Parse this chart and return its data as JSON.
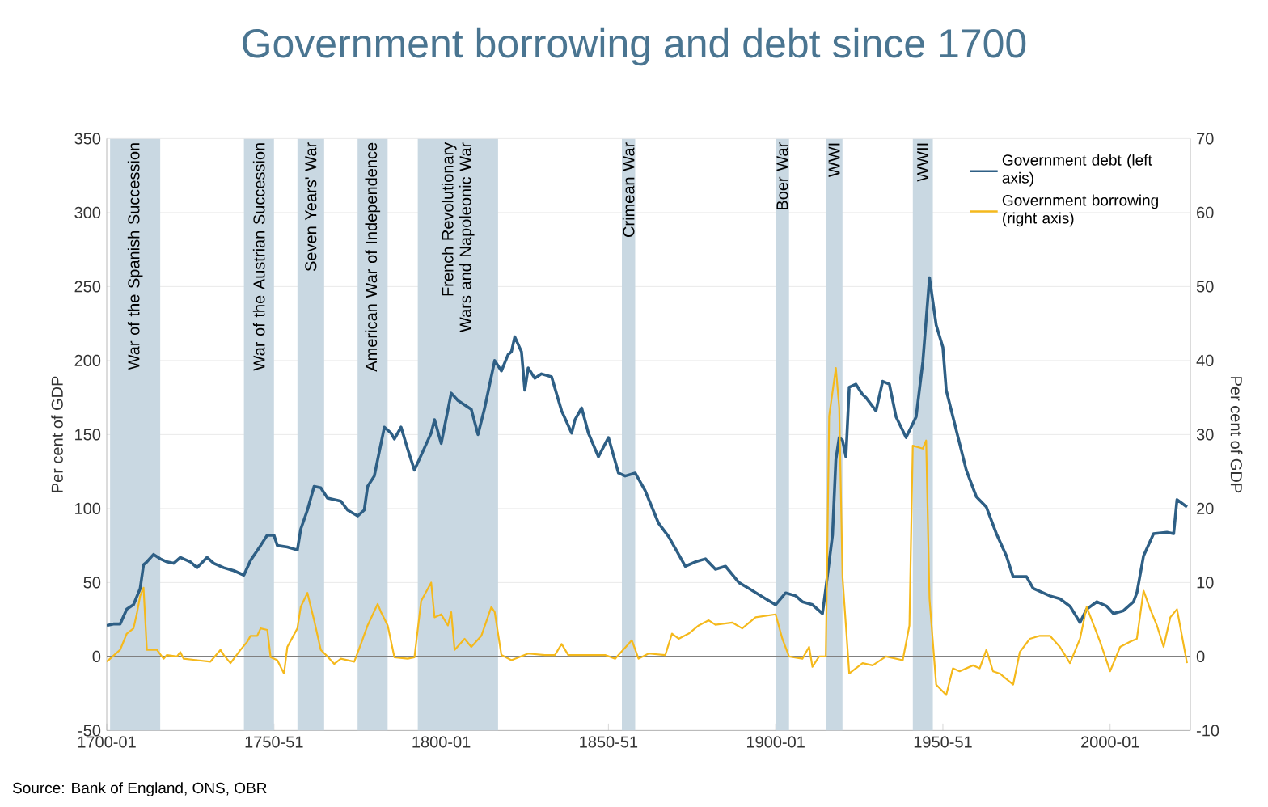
{
  "chart_data": {
    "type": "line",
    "title": "Government borrowing and debt since 1700",
    "ylabel": "Per cent of GDP",
    "y2label": "Per cent of GDP",
    "annotations": [
      "Source: Bank of England, ONS, OBR"
    ],
    "xlim": [
      "1700",
      "2024"
    ],
    "xticks": [
      {
        "value": "1700",
        "label": "1700-01"
      },
      {
        "value": "1750",
        "label": "1750-51"
      },
      {
        "value": "1800",
        "label": "1800-01"
      },
      {
        "value": "1850",
        "label": "1850-51"
      },
      {
        "value": "1900",
        "label": "1900-01"
      },
      {
        "value": "1950",
        "label": "1950-51"
      },
      {
        "value": "2000",
        "label": "2000-01"
      }
    ],
    "ylim": [
      -50,
      350
    ],
    "yticks": [
      -50,
      0,
      50,
      100,
      150,
      200,
      250,
      300,
      350
    ],
    "y2lim": [
      -10,
      70
    ],
    "y2ticks": [
      -10,
      0,
      10,
      20,
      30,
      40,
      50,
      60,
      70
    ],
    "grid": "y",
    "legend": "top right",
    "marker": "none",
    "line_style": "solid",
    "ref_lines": [
      {
        "axis": "y",
        "value": 0,
        "color": "#808080"
      }
    ],
    "bands": [
      {
        "axis": "x",
        "from": "1701",
        "to": "1716",
        "label": "War of the Spanish Succession",
        "color": "#c9d8e2"
      },
      {
        "axis": "x",
        "from": "1741",
        "to": "1750",
        "label": "War of the Austrian Succession",
        "color": "#c9d8e2"
      },
      {
        "axis": "x",
        "from": "1757",
        "to": "1765",
        "label": "Seven Years' War",
        "color": "#c9d8e2"
      },
      {
        "axis": "x",
        "from": "1775",
        "to": "1784",
        "label": "American War of Independence",
        "color": "#c9d8e2"
      },
      {
        "axis": "x",
        "from": "1793",
        "to": "1817",
        "label": "French Revolutionary Wars and Napoleonic War",
        "color": "#c9d8e2"
      },
      {
        "axis": "x",
        "from": "1854",
        "to": "1858",
        "label": "Crimean War",
        "color": "#c9d8e2"
      },
      {
        "axis": "x",
        "from": "1900",
        "to": "1904",
        "label": "Boer War",
        "color": "#c9d8e2"
      },
      {
        "axis": "x",
        "from": "1915",
        "to": "1920",
        "label": "WWI",
        "color": "#c9d8e2"
      },
      {
        "axis": "x",
        "from": "1941",
        "to": "1947",
        "label": "WWII",
        "color": "#c9d8e2"
      }
    ],
    "series": [
      {
        "name": "Government debt (left axis)",
        "color": "#2e5f85",
        "axis": "y",
        "x": [
          "1700",
          "1702",
          "1704",
          "1706",
          "1708",
          "1710",
          "1711",
          "1712",
          "1714",
          "1716",
          "1718",
          "1720",
          "1722",
          "1725",
          "1727",
          "1730",
          "1732",
          "1735",
          "1738",
          "1741",
          "1743",
          "1746",
          "1748",
          "1750",
          "1751",
          "1754",
          "1757",
          "1758",
          "1760",
          "1762",
          "1764",
          "1766",
          "1770",
          "1772",
          "1775",
          "1777",
          "1778",
          "1780",
          "1782",
          "1783",
          "1785",
          "1786",
          "1788",
          "1790",
          "1792",
          "1795",
          "1797",
          "1798",
          "1800",
          "1803",
          "1805",
          "1807",
          "1809",
          "1811",
          "1813",
          "1816",
          "1818",
          "1820",
          "1821",
          "1822",
          "1824",
          "1825",
          "1826",
          "1828",
          "1830",
          "1833",
          "1836",
          "1839",
          "1840",
          "1842",
          "1844",
          "1847",
          "1850",
          "1853",
          "1855",
          "1858",
          "1861",
          "1865",
          "1868",
          "1873",
          "1876",
          "1879",
          "1882",
          "1885",
          "1889",
          "1892",
          "1897",
          "1900",
          "1903",
          "1906",
          "1908",
          "1911",
          "1914",
          "1915",
          "1917",
          "1918",
          "1919",
          "1920",
          "1921",
          "1922",
          "1924",
          "1926",
          "1927",
          "1930",
          "1932",
          "1934",
          "1936",
          "1939",
          "1942",
          "1944",
          "1946",
          "1948",
          "1950",
          "1951",
          "1955",
          "1957",
          "1960",
          "1963",
          "1966",
          "1969",
          "1971",
          "1975",
          "1977",
          "1982",
          "1985",
          "1988",
          "1991",
          "1993",
          "1996",
          "1999",
          "2001",
          "2004",
          "2007",
          "2008",
          "2010",
          "2013",
          "2017",
          "2019",
          "2020",
          "2023"
        ],
        "values": [
          21,
          22,
          22,
          32,
          35,
          46,
          62,
          64,
          69,
          66,
          64,
          63,
          67,
          64,
          60,
          67,
          63,
          60,
          58,
          55,
          65,
          75,
          82,
          82,
          75,
          74,
          72,
          86,
          99,
          115,
          114,
          107,
          105,
          99,
          95,
          99,
          115,
          122,
          144,
          155,
          151,
          147,
          155,
          140,
          126,
          141,
          151,
          160,
          144,
          178,
          173,
          170,
          167,
          150,
          168,
          200,
          193,
          204,
          206,
          216,
          206,
          180,
          195,
          188,
          191,
          189,
          166,
          151,
          160,
          168,
          151,
          135,
          148,
          124,
          122,
          124,
          112,
          90,
          81,
          61,
          64,
          66,
          59,
          61,
          50,
          46,
          39,
          35,
          43,
          41,
          37,
          35,
          29,
          46,
          82,
          133,
          148,
          146,
          135,
          182,
          184,
          177,
          175,
          166,
          186,
          184,
          162,
          148,
          162,
          199,
          256,
          224,
          209,
          180,
          144,
          126,
          108,
          101,
          83,
          68,
          54,
          54,
          46,
          41,
          39,
          34,
          23,
          32,
          37,
          34,
          29,
          31,
          37,
          43,
          68,
          83,
          84,
          83,
          106,
          101
        ]
      },
      {
        "name": "Government borrowing (right axis)",
        "color": "#f5b91c",
        "axis": "y2",
        "x": [
          "1700",
          "1704",
          "1706",
          "1708",
          "1709",
          "1710",
          "1711",
          "1712",
          "1715",
          "1717",
          "1718",
          "1721",
          "1722",
          "1723",
          "1727",
          "1731",
          "1734",
          "1735",
          "1737",
          "1740",
          "1742",
          "1743",
          "1745",
          "1746",
          "1748",
          "1749",
          "1751",
          "1753",
          "1754",
          "1757",
          "1758",
          "1760",
          "1762",
          "1764",
          "1766",
          "1768",
          "1770",
          "1774",
          "1776",
          "1778",
          "1781",
          "1782",
          "1784",
          "1786",
          "1790",
          "1792",
          "1794",
          "1797",
          "1798",
          "1800",
          "1802",
          "1803",
          "1804",
          "1807",
          "1809",
          "1812",
          "1815",
          "1816",
          "1818",
          "1821",
          "1826",
          "1831",
          "1834",
          "1836",
          "1838",
          "1844",
          "1849",
          "1852",
          "1857",
          "1859",
          "1862",
          "1867",
          "1869",
          "1871",
          "1874",
          "1877",
          "1880",
          "1882",
          "1887",
          "1890",
          "1894",
          "1900",
          "1902",
          "1904",
          "1908",
          "1910",
          "1911",
          "1913",
          "1915",
          "1916",
          "1918",
          "1919",
          "1920",
          "1922",
          "1926",
          "1929",
          "1933",
          "1938",
          "1940",
          "1941",
          "1944",
          "1945",
          "1946",
          "1948",
          "1951",
          "1953",
          "1955",
          "1959",
          "1961",
          "1963",
          "1965",
          "1967",
          "1971",
          "1973",
          "1976",
          "1979",
          "1982",
          "1985",
          "1988",
          "1991",
          "1993",
          "1997",
          "2000",
          "2003",
          "2006",
          "2008",
          "2010",
          "2012",
          "2014",
          "2016",
          "2018",
          "2020",
          "2023"
        ],
        "values": [
          -0.7,
          0.9,
          3.1,
          3.8,
          5.8,
          8.2,
          9.3,
          0.9,
          0.9,
          -0.3,
          0.2,
          0,
          0.6,
          -0.3,
          -0.5,
          -0.7,
          0.9,
          0.2,
          -0.9,
          0.9,
          2,
          2.8,
          2.8,
          3.8,
          3.6,
          -0.1,
          -0.5,
          -2.3,
          1.3,
          3.8,
          6.7,
          8.6,
          4.9,
          0.9,
          0,
          -1,
          -0.3,
          -0.7,
          1.7,
          4.2,
          7.1,
          6,
          4.2,
          -0.1,
          -0.3,
          -0.1,
          7.5,
          10,
          5.3,
          5.7,
          4.2,
          6,
          0.9,
          2.4,
          1.3,
          2.8,
          6.7,
          6,
          0.2,
          -0.5,
          0.4,
          0.2,
          0.2,
          1.7,
          0.2,
          0.2,
          0.2,
          -0.3,
          2.2,
          -0.3,
          0.4,
          0.2,
          3.1,
          2.4,
          3.1,
          4.2,
          4.9,
          4.3,
          4.6,
          3.8,
          5.3,
          5.7,
          2.4,
          0,
          -0.3,
          1.3,
          -1.4,
          0,
          0,
          32.5,
          39,
          33.6,
          10.7,
          -2.3,
          -0.9,
          -1.2,
          0,
          -0.5,
          4.2,
          28.5,
          28.1,
          29.2,
          7.8,
          -3.8,
          -5.2,
          -1.6,
          -2,
          -1.2,
          -1.6,
          0.9,
          -2,
          -2.3,
          -3.8,
          0.6,
          2.4,
          2.8,
          2.8,
          1.3,
          -0.9,
          2.4,
          6.7,
          2,
          -2,
          1.3,
          2,
          2.4,
          8.9,
          6.4,
          4.2,
          1.3,
          5.3,
          6.4,
          -0.9
        ]
      }
    ]
  }
}
